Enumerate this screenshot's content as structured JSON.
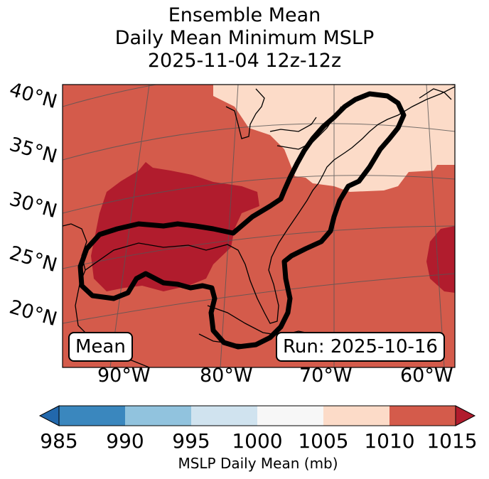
{
  "title": {
    "line1": "Ensemble Mean",
    "line2": "Daily Mean Minimum MSLP",
    "line3": "2025-11-04 12z-12z"
  },
  "map": {
    "lat_labels": [
      "40°N",
      "35°N",
      "30°N",
      "25°N",
      "20°N"
    ],
    "lon_labels": [
      "90°W",
      "80°W",
      "70°W",
      "60°W"
    ],
    "mean_box": "Mean",
    "run_box": "Run: 2025-10-16"
  },
  "colorbar": {
    "label": "MSLP Daily Mean (mb)",
    "ticks": [
      "985",
      "990",
      "995",
      "1000",
      "1005",
      "1010",
      "1015"
    ],
    "colors": [
      "#3a87be",
      "#91c3de",
      "#d0e3ef",
      "#f7f7f7",
      "#fcdbc8",
      "#d45b4b",
      "#b11c2d"
    ],
    "under_color": "#2268ac",
    "over_color": "#b11c2d"
  },
  "fill_colors": {
    "c1005": "#fcdbc8",
    "c1010": "#d45b4b",
    "c1015": "#b11c2d"
  }
}
